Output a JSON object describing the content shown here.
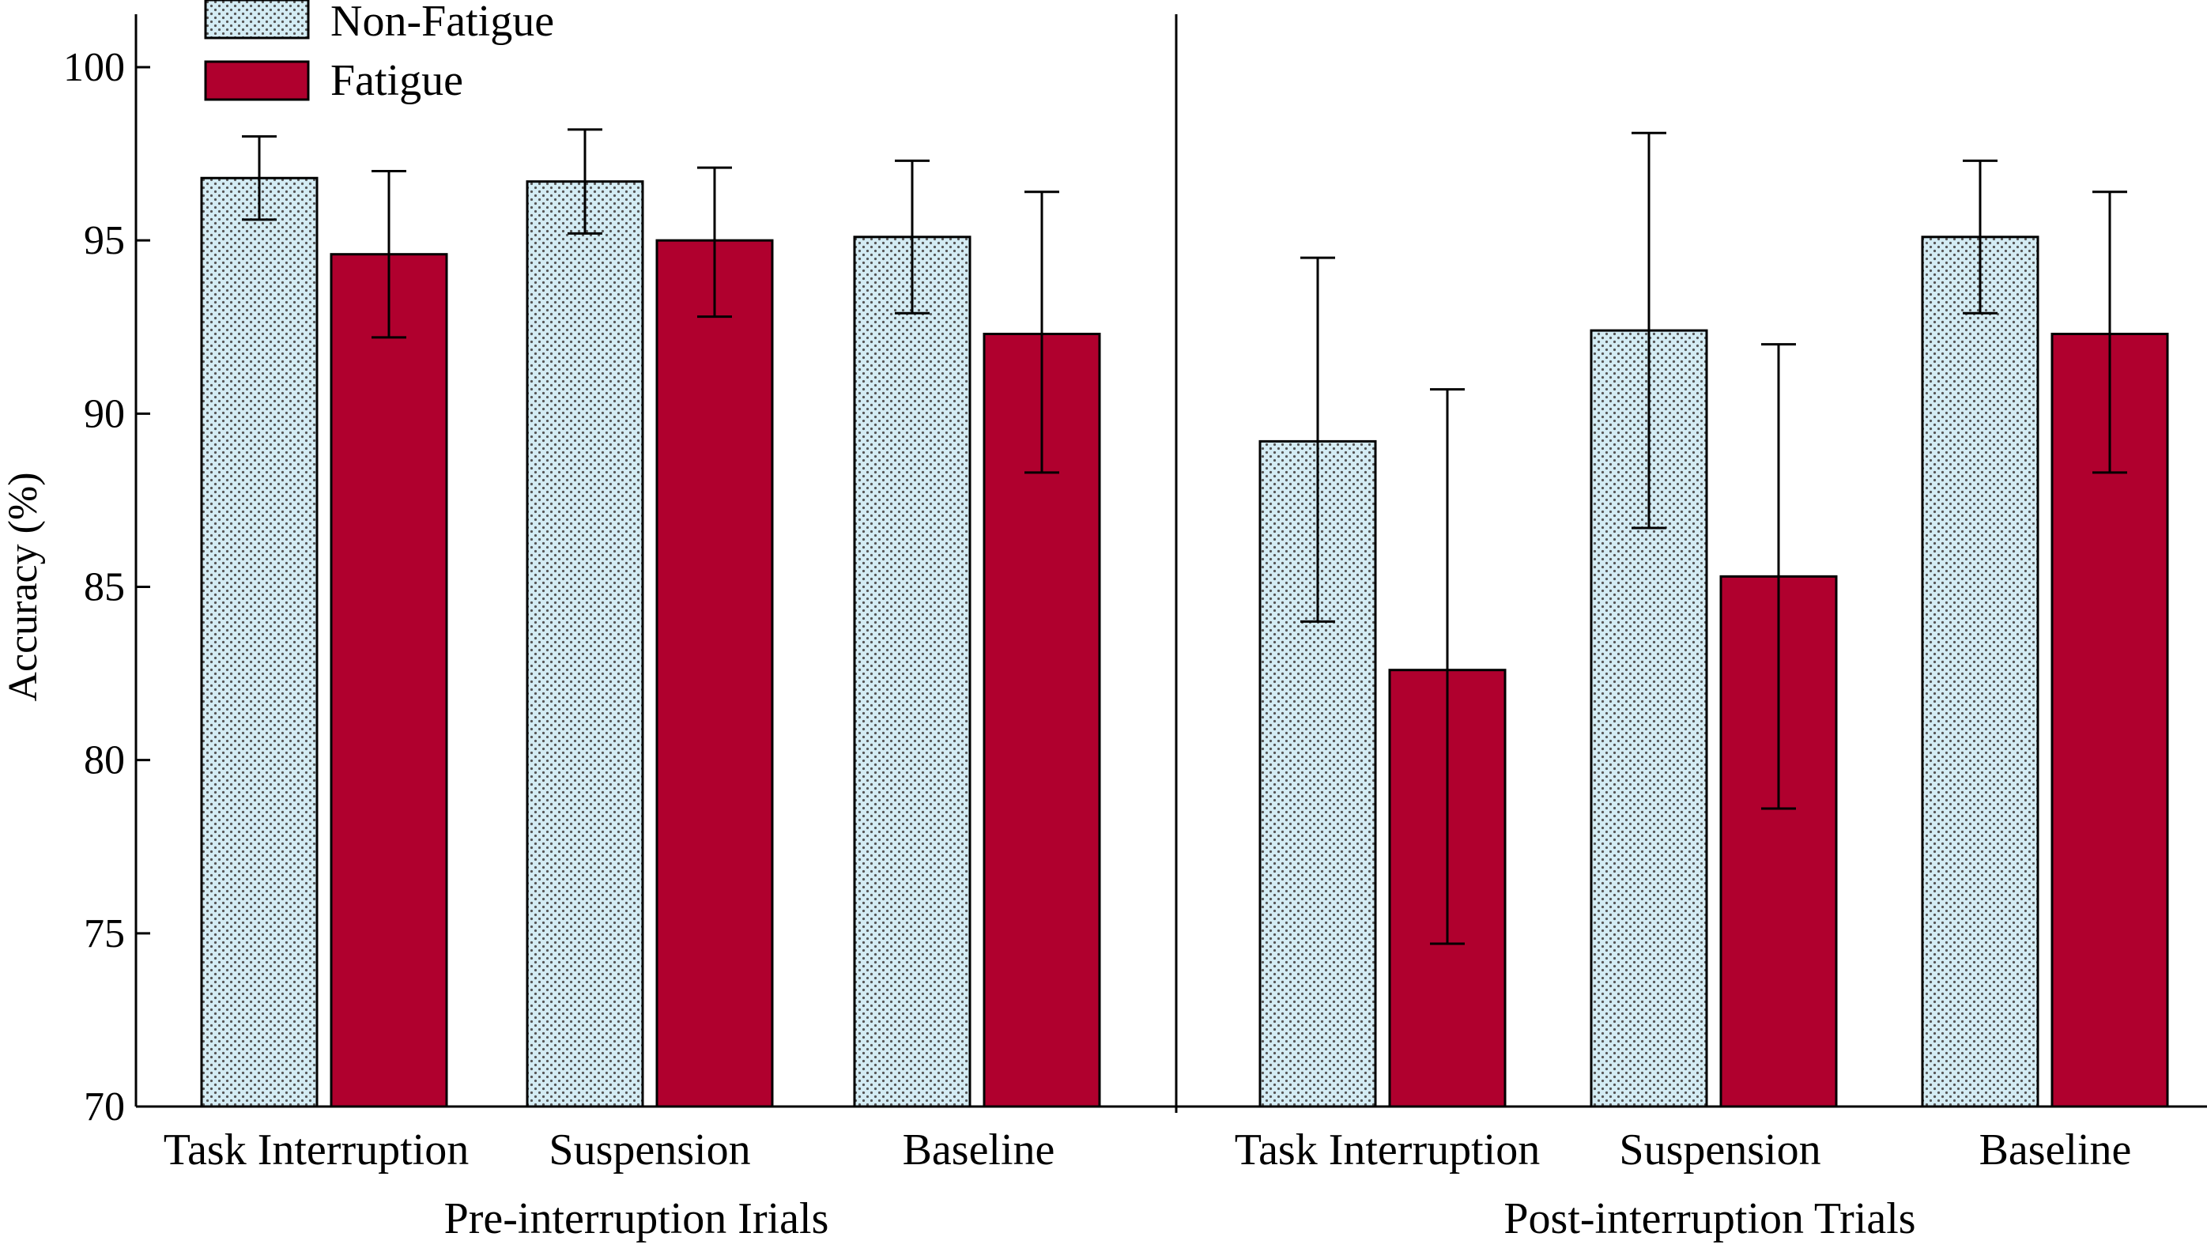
{
  "chart_data": {
    "type": "bar",
    "ylabel": "Accuracy (%)",
    "ylim": [
      70,
      100
    ],
    "yticks": [
      70,
      75,
      80,
      85,
      90,
      95,
      100
    ],
    "grid": false,
    "legend_position": "top-left",
    "colors": {
      "non_fatigue_fill": "#d4ecf4",
      "non_fatigue_dots": "#555555",
      "fatigue_fill": "#b0002e",
      "stroke": "#000000"
    },
    "groups": [
      {
        "label": "Pre-interruption Irials",
        "categories": [
          "Task Interruption",
          "Suspension",
          "Baseline"
        ]
      },
      {
        "label": "Post-interruption Trials",
        "categories": [
          "Task Interruption",
          "Suspension",
          "Baseline"
        ]
      }
    ],
    "series": [
      {
        "name": "Non-Fatigue",
        "values": [
          96.8,
          96.7,
          95.1,
          89.2,
          92.4,
          95.1
        ],
        "err_low": [
          95.6,
          95.2,
          92.9,
          84.0,
          86.7,
          92.9
        ],
        "err_high": [
          98.0,
          98.2,
          97.3,
          94.5,
          98.1,
          97.3
        ]
      },
      {
        "name": "Fatigue",
        "values": [
          94.6,
          95.0,
          92.3,
          82.6,
          85.3,
          92.3
        ],
        "err_low": [
          92.2,
          92.8,
          88.3,
          74.7,
          78.6,
          88.3
        ],
        "err_high": [
          97.0,
          97.1,
          96.4,
          90.7,
          92.0,
          96.4
        ]
      }
    ]
  }
}
